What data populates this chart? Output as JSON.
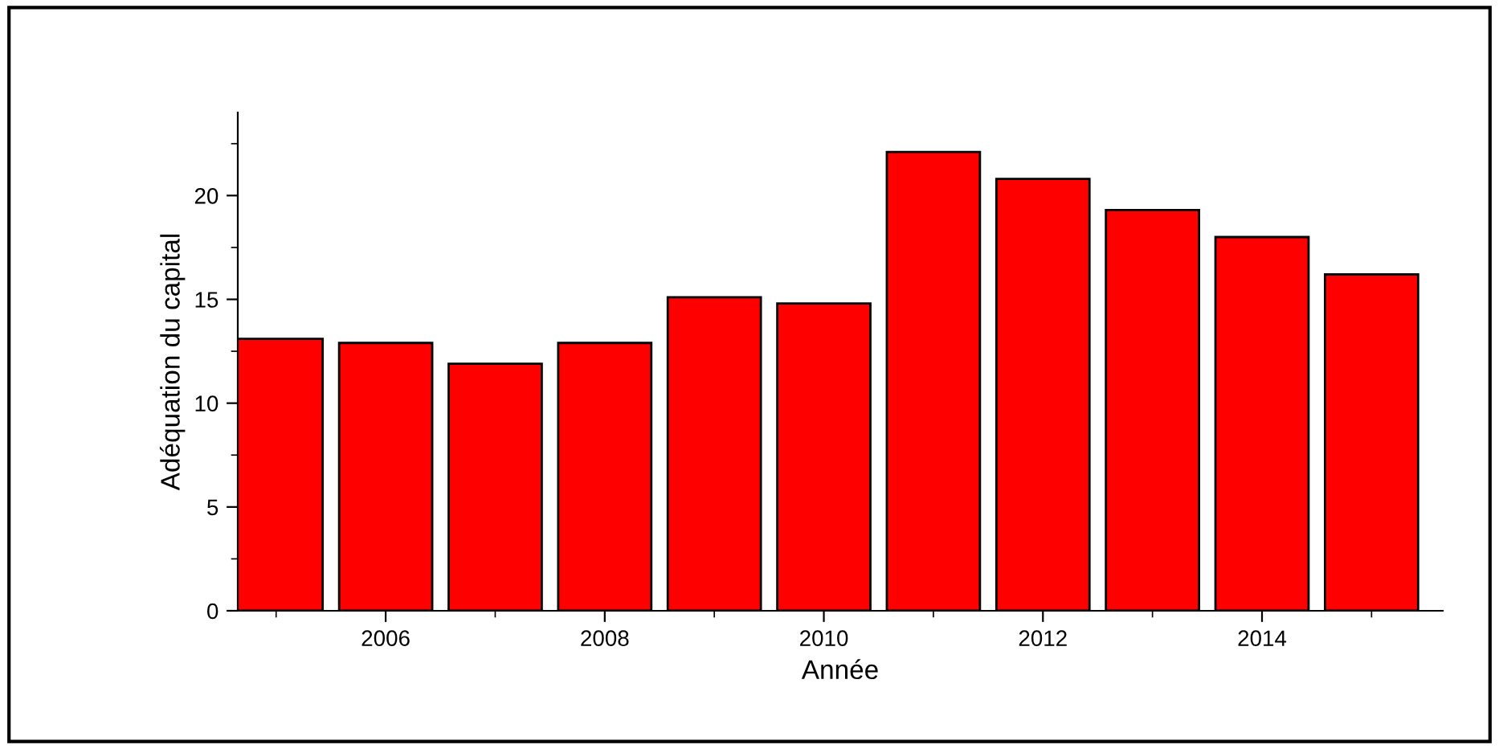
{
  "chart_data": {
    "type": "bar",
    "xlabel": "Année",
    "ylabel": "Adéquation du capital",
    "x": [
      2005,
      2006,
      2007,
      2008,
      2009,
      2010,
      2011,
      2012,
      2013,
      2014,
      2015
    ],
    "values": [
      13.1,
      12.9,
      11.9,
      12.9,
      15.1,
      14.8,
      22.1,
      20.8,
      19.3,
      18.0,
      16.2
    ],
    "color": "#ff0000",
    "xlim": [
      2004.65,
      2015.65
    ],
    "xticks": [
      2006,
      2008,
      2010,
      2012,
      2014
    ],
    "ylim": [
      0,
      24
    ],
    "yticks": [
      0,
      5,
      10,
      15,
      20
    ],
    "grid": false,
    "legend": false
  }
}
